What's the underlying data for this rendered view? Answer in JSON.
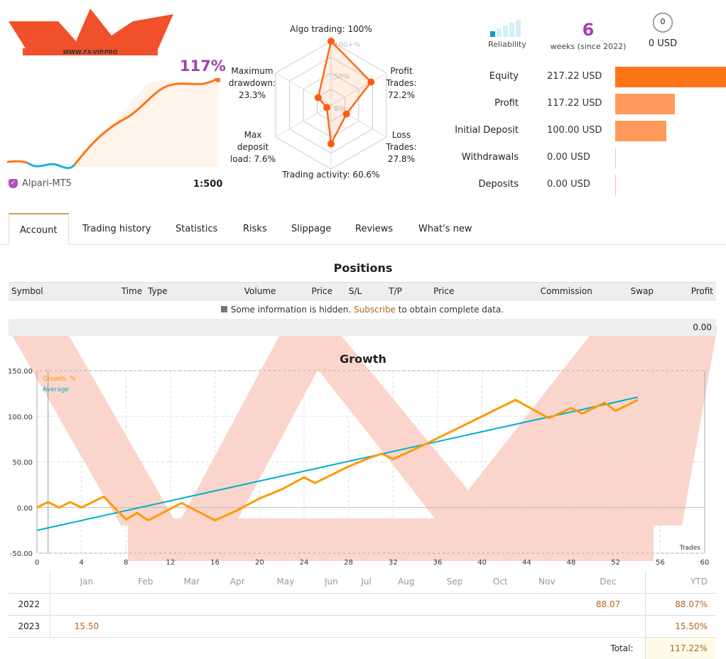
{
  "header": {
    "logo_text": "WWW.FX-VIP.PRO",
    "growth_pct": "117%",
    "broker": "Alpari-MT5",
    "leverage": "1:500"
  },
  "radar": {
    "labels": [
      "Algo trading: 100%",
      "Profit Trades: 72.2%",
      "Loss Trades: 27.8%",
      "Trading activity: 60.6%",
      "Max deposit load: 7.6%",
      "Maximum drawdown: 23.3%"
    ],
    "label_lines": [
      [
        "Algo trading: 100%"
      ],
      [
        "Profit",
        "Trades:",
        "72.2%"
      ],
      [
        "Loss",
        "Trades:",
        "27.8%"
      ],
      [
        "Trading activity: 60.6%"
      ],
      [
        "Max",
        "deposit",
        "load: 7.6%"
      ],
      [
        "Maximum",
        "drawdown:",
        "23.3%"
      ]
    ],
    "values": [
      100,
      72.2,
      27.8,
      60.6,
      7.6,
      23.3
    ],
    "scale_labels": [
      "100+%",
      "50%",
      "0%"
    ]
  },
  "summary": {
    "reliability": "Reliability",
    "reliability_level": 1,
    "weeks": "6",
    "weeks_label": "weeks (since 2022)",
    "subscribers": "0",
    "subscribers_usd": "0 USD"
  },
  "balances": [
    {
      "label": "Equity",
      "value": "217.22 USD",
      "amount": 217.22,
      "color": "#ff7518"
    },
    {
      "label": "Profit",
      "value": "117.22 USD",
      "amount": 117.22,
      "color": "#ff9a5c"
    },
    {
      "label": "Initial Deposit",
      "value": "100.00 USD",
      "amount": 100,
      "color": "#ff9a5c"
    },
    {
      "label": "Withdrawals",
      "value": "0.00 USD",
      "amount": 0,
      "color": "#f4c0a8"
    },
    {
      "label": "Deposits",
      "value": "0.00 USD",
      "amount": 0,
      "color": "#f4c0a8"
    }
  ],
  "tabs": [
    "Account",
    "Trading history",
    "Statistics",
    "Risks",
    "Slippage",
    "Reviews",
    "What's new"
  ],
  "positions": {
    "title": "Positions",
    "columns": [
      "Symbol",
      "Time",
      "Type",
      "Volume",
      "Price",
      "S/L",
      "T/P",
      "Price",
      "Commission",
      "Swap",
      "Profit"
    ],
    "info_before": "Some information is hidden.",
    "info_link": "Subscribe",
    "info_after": "to obtain complete data.",
    "total": "0.00"
  },
  "chart_data": {
    "type": "line",
    "title": "Growth",
    "xlabel": "Trades",
    "ylabel": "",
    "xlim": [
      0,
      60
    ],
    "ylim": [
      -50,
      150
    ],
    "xticks": [
      0,
      4,
      8,
      12,
      16,
      20,
      24,
      28,
      32,
      36,
      40,
      44,
      48,
      52,
      56,
      60
    ],
    "yticks": [
      "150.00",
      "100.00",
      "50.00",
      "0.00",
      "-50.00"
    ],
    "ytick_values": [
      150,
      100,
      50,
      0,
      -50
    ],
    "series": [
      {
        "name": "Growth, %",
        "color": "#ff9a00",
        "x": [
          0,
          1,
          2,
          3,
          4,
          6,
          8,
          9,
          10,
          13,
          16,
          18,
          20,
          22,
          24,
          25,
          28,
          30,
          31,
          32,
          35,
          40,
          43,
          46,
          48,
          49,
          51,
          52,
          54
        ],
        "y": [
          0,
          6,
          0,
          6,
          0,
          12,
          -13,
          -6,
          -14,
          5,
          -14,
          -3,
          10,
          20,
          33,
          27,
          45,
          55,
          59,
          53,
          70,
          100,
          118,
          98,
          109,
          103,
          115,
          106,
          118
        ]
      },
      {
        "name": "Average",
        "color": "#00b0c8",
        "x": [
          0,
          54
        ],
        "y": [
          -25,
          121
        ]
      }
    ],
    "legend": "top-left"
  },
  "monthly": {
    "months": [
      "Jan",
      "Feb",
      "Mar",
      "Apr",
      "May",
      "Jun",
      "Jul",
      "Aug",
      "Sep",
      "Oct",
      "Nov",
      "Dec"
    ],
    "ytd_label": "YTD",
    "rows": [
      {
        "year": "2022",
        "values": [
          "",
          "",
          "",
          "",
          "",
          "",
          "",
          "",
          "",
          "",
          "",
          "88.07"
        ],
        "ytd": "88.07%"
      },
      {
        "year": "2023",
        "values": [
          "15.50",
          "",
          "",
          "",
          "",
          "",
          "",
          "",
          "",
          "",
          "",
          ""
        ],
        "ytd": "15.50%"
      }
    ],
    "total_label": "Total:",
    "total": "117.22%"
  }
}
